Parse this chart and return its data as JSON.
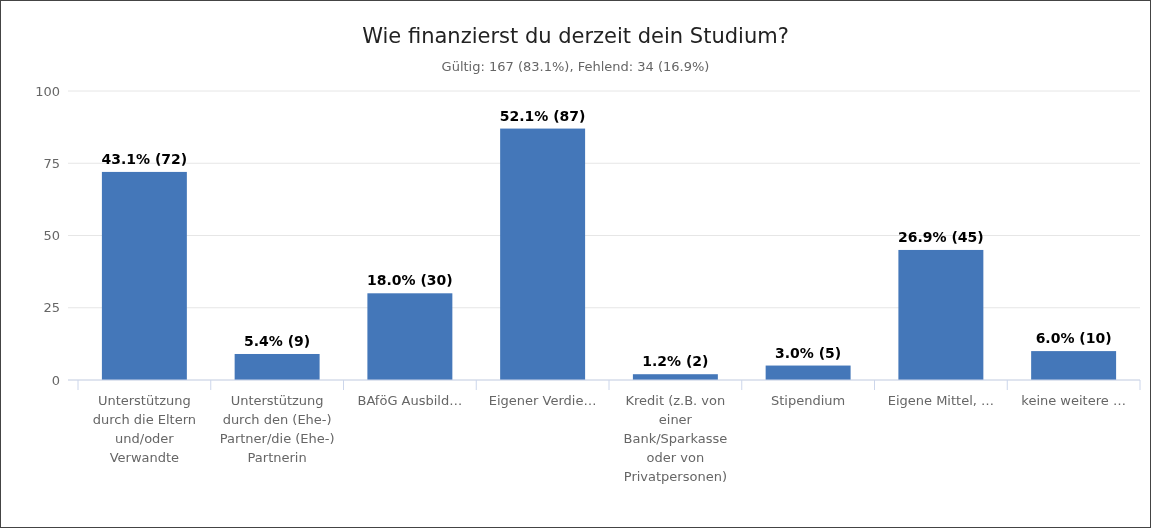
{
  "chart_data": {
    "type": "bar",
    "title": "Wie finanzierst du derzeit dein Studium?",
    "subtitle": "Gültig: 167 (83.1%), Fehlend: 34 (16.9%)",
    "categories": [
      "Unterstützung durch die Eltern und/oder Verwandte",
      "Unterstützung durch den (Ehe-) Partner/die (Ehe-) Partnerin",
      "BAföG Ausbild…",
      "Eigener Verdie…",
      "Kredit (z.B. von einer Bank/Sparkasse oder von Privatpersonen)",
      "Stipendium",
      "Eigene Mittel, …",
      "keine weitere …"
    ],
    "values": [
      72,
      9,
      30,
      87,
      2,
      5,
      45,
      10
    ],
    "value_labels": [
      "43.1% (72)",
      "5.4% (9)",
      "18.0% (30)",
      "52.1% (87)",
      "1.2% (2)",
      "3.0% (5)",
      "26.9% (45)",
      "6.0% (10)"
    ],
    "color": "#4477b9",
    "ylim": [
      0,
      100
    ],
    "yticks": [
      0,
      25,
      50,
      75,
      100
    ],
    "grid": "y"
  }
}
